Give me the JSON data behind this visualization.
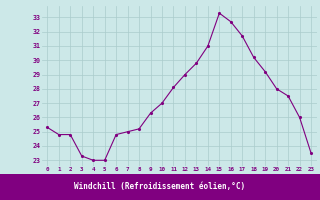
{
  "x": [
    0,
    1,
    2,
    3,
    4,
    5,
    6,
    7,
    8,
    9,
    10,
    11,
    12,
    13,
    14,
    15,
    16,
    17,
    18,
    19,
    20,
    21,
    22,
    23
  ],
  "y": [
    25.3,
    24.8,
    24.8,
    23.3,
    23.0,
    23.0,
    24.8,
    25.0,
    25.2,
    26.3,
    27.0,
    28.1,
    29.0,
    29.8,
    31.0,
    33.3,
    32.7,
    31.7,
    30.2,
    29.2,
    28.0,
    27.5,
    26.0,
    23.5
  ],
  "line_color": "#800080",
  "marker": ".",
  "marker_color": "#800080",
  "bg_color": "#cce8e8",
  "grid_color": "#aacccc",
  "xlabel": "Windchill (Refroidissement éolien,°C)",
  "xlabel_color": "#800080",
  "tick_color": "#800080",
  "label_bar_color": "#800080",
  "yticks": [
    23,
    24,
    25,
    26,
    27,
    28,
    29,
    30,
    31,
    32,
    33
  ],
  "xticks": [
    0,
    1,
    2,
    3,
    4,
    5,
    6,
    7,
    8,
    9,
    10,
    11,
    12,
    13,
    14,
    15,
    16,
    17,
    18,
    19,
    20,
    21,
    22,
    23
  ],
  "ylim": [
    22.6,
    33.8
  ],
  "xlim": [
    -0.5,
    23.5
  ]
}
